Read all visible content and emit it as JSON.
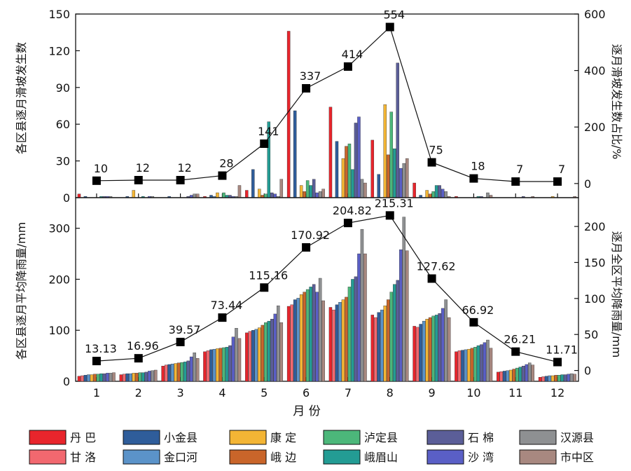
{
  "chart_data": [
    {
      "type": "bar",
      "panel": "top",
      "ylabel_left": "各区县逐月滑坡发生数",
      "ylabel_right": "逐月滑坡发生数占比/%",
      "ylim_left": [
        0,
        150
      ],
      "yticks_left": [
        0,
        30,
        60,
        90,
        120,
        150
      ],
      "ylim_right": [
        -50,
        600
      ],
      "yticks_right": [
        0,
        200,
        400,
        600
      ],
      "categories": [
        "1",
        "2",
        "3",
        "4",
        "5",
        "6",
        "7",
        "8",
        "9",
        "10",
        "11",
        "12"
      ],
      "series": [
        {
          "name": "丹 巴",
          "values": [
            3,
            0,
            0,
            1,
            6,
            136,
            74,
            47,
            12,
            1,
            0,
            0
          ]
        },
        {
          "name": "甘 洛",
          "values": [
            0,
            0,
            0,
            0,
            0,
            0,
            0,
            0,
            0,
            0,
            0,
            0
          ]
        },
        {
          "name": "小金县",
          "values": [
            1,
            1,
            1,
            2,
            23,
            71,
            46,
            19,
            2,
            0,
            0,
            0
          ]
        },
        {
          "name": "金口河",
          "values": [
            0,
            0,
            0,
            1,
            0,
            0,
            0,
            0,
            0,
            0,
            0,
            0
          ]
        },
        {
          "name": "康 定",
          "values": [
            0,
            6,
            0,
            4,
            7,
            10,
            32,
            76,
            6,
            0,
            0,
            1
          ]
        },
        {
          "name": "峨 边",
          "values": [
            0,
            0,
            0,
            0,
            2,
            5,
            42,
            35,
            3,
            0,
            0,
            0
          ]
        },
        {
          "name": "泸定县",
          "values": [
            0,
            0,
            0,
            4,
            3,
            14,
            44,
            70,
            5,
            0,
            0,
            0
          ]
        },
        {
          "name": "峨眉山",
          "values": [
            1,
            1,
            0,
            2,
            62,
            10,
            23,
            40,
            10,
            1,
            0,
            0
          ]
        },
        {
          "name": "石 棉",
          "values": [
            1,
            0,
            1,
            2,
            4,
            15,
            61,
            110,
            10,
            1,
            1,
            0
          ]
        },
        {
          "name": "沙 湾",
          "values": [
            1,
            1,
            2,
            1,
            3,
            4,
            66,
            24,
            7,
            0,
            0,
            0
          ]
        },
        {
          "name": "汉源县",
          "values": [
            1,
            1,
            3,
            1,
            1,
            5,
            15,
            28,
            5,
            4,
            0,
            0
          ]
        },
        {
          "name": "市中区",
          "values": [
            0,
            0,
            3,
            10,
            15,
            7,
            12,
            32,
            1,
            2,
            1,
            1
          ]
        }
      ],
      "line": {
        "name": "逐月滑坡发生数",
        "values": [
          10,
          12,
          12,
          28,
          141,
          337,
          414,
          554,
          75,
          18,
          7,
          7
        ],
        "labels": [
          "10",
          "12",
          "12",
          "28",
          "141",
          "337",
          "414",
          "554",
          "75",
          "18",
          "7",
          "7"
        ]
      }
    },
    {
      "type": "bar",
      "panel": "bottom",
      "xlabel": "月  份",
      "ylabel_left": "各区县逐月平均降雨量/mm",
      "ylabel_right": "逐月全区平均降雨量/mm",
      "ylim_left": [
        0,
        360
      ],
      "yticks_left": [
        0,
        100,
        200,
        300
      ],
      "ylim_right": [
        -15,
        240
      ],
      "yticks_right": [
        0,
        50,
        100,
        150,
        200
      ],
      "categories": [
        "1",
        "2",
        "3",
        "4",
        "5",
        "6",
        "7",
        "8",
        "9",
        "10",
        "11",
        "12"
      ],
      "series": [
        {
          "name": "丹 巴",
          "values": [
            10,
            13,
            30,
            58,
            95,
            147,
            145,
            130,
            108,
            58,
            18,
            8
          ]
        },
        {
          "name": "甘 洛",
          "values": [
            11,
            14,
            32,
            60,
            98,
            150,
            140,
            125,
            106,
            60,
            19,
            9
          ]
        },
        {
          "name": "小金县",
          "values": [
            12,
            15,
            33,
            62,
            100,
            160,
            150,
            135,
            112,
            61,
            20,
            10
          ]
        },
        {
          "name": "金口河",
          "values": [
            13,
            15,
            34,
            63,
            102,
            163,
            155,
            140,
            118,
            62,
            21,
            11
          ]
        },
        {
          "name": "康 定",
          "values": [
            13,
            16,
            35,
            64,
            105,
            170,
            160,
            148,
            122,
            63,
            22,
            11
          ]
        },
        {
          "name": "峨 边",
          "values": [
            14,
            16,
            36,
            65,
            110,
            175,
            165,
            160,
            125,
            65,
            24,
            12
          ]
        },
        {
          "name": "泸定县",
          "values": [
            14,
            17,
            37,
            66,
            115,
            180,
            185,
            175,
            128,
            67,
            26,
            12
          ]
        },
        {
          "name": "峨眉山",
          "values": [
            15,
            17,
            38,
            67,
            118,
            185,
            200,
            190,
            130,
            70,
            28,
            13
          ]
        },
        {
          "name": "石 棉",
          "values": [
            15,
            18,
            40,
            70,
            122,
            190,
            205,
            198,
            133,
            72,
            30,
            13
          ]
        },
        {
          "name": "沙 湾",
          "values": [
            16,
            20,
            48,
            87,
            132,
            175,
            250,
            258,
            143,
            76,
            33,
            14
          ]
        },
        {
          "name": "汉源县",
          "values": [
            16,
            21,
            56,
            104,
            148,
            202,
            298,
            322,
            160,
            81,
            36,
            15
          ]
        },
        {
          "name": "市中区",
          "values": [
            17,
            22,
            45,
            84,
            115,
            158,
            250,
            256,
            125,
            65,
            32,
            14
          ]
        }
      ],
      "line": {
        "name": "逐月全区平均降雨量",
        "values": [
          13.13,
          16.96,
          39.57,
          73.44,
          115.16,
          170.92,
          204.82,
          215.31,
          127.62,
          66.92,
          26.21,
          11.71
        ],
        "labels": [
          "13.13",
          "16.96",
          "39.57",
          "73.44",
          "115.16",
          "170.92",
          "204.82",
          "215.31",
          "127.62",
          "66.92",
          "26.21",
          "11.71"
        ]
      }
    }
  ],
  "legend": {
    "items": [
      {
        "name": "丹  巴",
        "color": "#e8252c"
      },
      {
        "name": "小金县",
        "color": "#2f5d9a"
      },
      {
        "name": "康  定",
        "color": "#f3b535"
      },
      {
        "name": "泸定县",
        "color": "#4cb77a"
      },
      {
        "name": "石  棉",
        "color": "#5b5e98"
      },
      {
        "name": "汉源县",
        "color": "#8e9092"
      },
      {
        "name": "甘  洛",
        "color": "#f2686f"
      },
      {
        "name": "金口河",
        "color": "#5b93c9"
      },
      {
        "name": "峨  边",
        "color": "#c9652a"
      },
      {
        "name": "峨眉山",
        "color": "#239c94"
      },
      {
        "name": "沙  湾",
        "color": "#5a5fc6"
      },
      {
        "name": "市中区",
        "color": "#a88880"
      }
    ]
  },
  "series_colors": [
    "#e8252c",
    "#f2686f",
    "#2f5d9a",
    "#5b93c9",
    "#f3b535",
    "#c9652a",
    "#4cb77a",
    "#239c94",
    "#5b5e98",
    "#5a5fc6",
    "#8e9092",
    "#a88880"
  ]
}
